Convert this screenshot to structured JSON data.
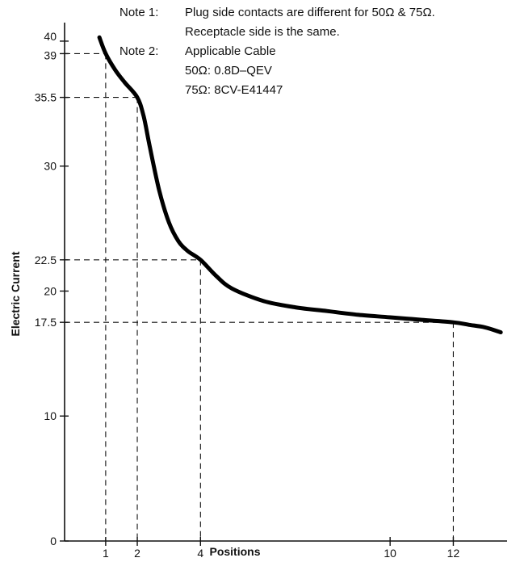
{
  "chart_data": {
    "type": "line",
    "title": "",
    "xlabel": "Positions",
    "ylabel": "Electric Current",
    "xlim": [
      -0.3,
      13.7
    ],
    "ylim": [
      0,
      42
    ],
    "grid": false,
    "x_ticks": [
      1,
      2,
      4,
      10,
      12
    ],
    "y_ticks": [
      0,
      10,
      17.5,
      20,
      22.5,
      30,
      35.5,
      39,
      40
    ],
    "series": [
      {
        "x": [
          0.8,
          1.0,
          1.3,
          1.6,
          2.0,
          2.2,
          2.4,
          2.7,
          3.0,
          3.3,
          3.6,
          4.0,
          4.5,
          5.0,
          6.0,
          7.0,
          8.0,
          9.0,
          10.0,
          11.0,
          12.0,
          12.5,
          13.0,
          13.5
        ],
        "y": [
          40.3,
          39.0,
          37.7,
          36.7,
          35.5,
          34.0,
          31.5,
          28.0,
          25.5,
          24.0,
          23.2,
          22.5,
          21.2,
          20.2,
          19.2,
          18.7,
          18.4,
          18.1,
          17.9,
          17.7,
          17.5,
          17.3,
          17.1,
          16.7
        ]
      }
    ],
    "reference_points": [
      {
        "x": 1,
        "y": 39
      },
      {
        "x": 2,
        "y": 35.5
      },
      {
        "x": 4,
        "y": 22.5
      },
      {
        "x": 12,
        "y": 17.5
      }
    ],
    "annotations": {
      "note1_label": "Note 1:",
      "note1_line1": "Plug side contacts are different for 50Ω & 75Ω.",
      "note1_line2": "Receptacle side is the same.",
      "note2_label": "Note 2:",
      "note2_line1": "Applicable Cable",
      "note2_line2": "50Ω: 0.8D–QEV",
      "note2_line3": "75Ω: 8CV-E41447"
    }
  }
}
